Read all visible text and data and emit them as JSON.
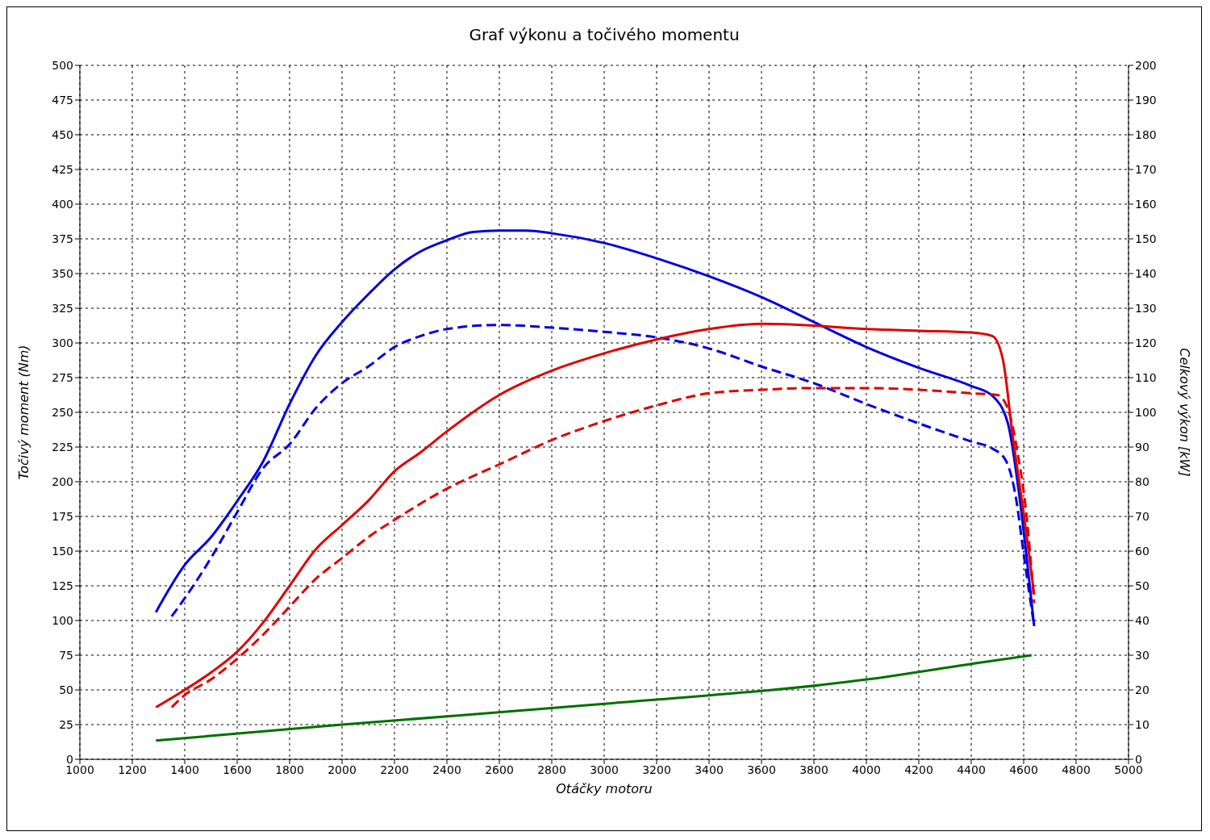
{
  "chart_data": {
    "type": "line",
    "title": "Graf výkonu a točivého momentu",
    "xlabel": "Otáčky motoru",
    "ylabel": "Točivý moment (Nm)",
    "y2label": "Celkový výkon [kW]",
    "xlim": [
      1000,
      5000
    ],
    "xticks": [
      1000,
      1200,
      1400,
      1600,
      1800,
      2000,
      2200,
      2400,
      2600,
      2800,
      3000,
      3200,
      3400,
      3600,
      3800,
      4000,
      4200,
      4400,
      4600,
      4800,
      5000
    ],
    "ylim": [
      0,
      500
    ],
    "yticks": [
      0,
      25,
      50,
      75,
      100,
      125,
      150,
      175,
      200,
      225,
      250,
      275,
      300,
      325,
      350,
      375,
      400,
      425,
      450,
      475,
      500
    ],
    "y2lim": [
      0,
      200
    ],
    "y2ticks": [
      0,
      10,
      20,
      30,
      40,
      50,
      60,
      70,
      80,
      90,
      100,
      110,
      120,
      130,
      140,
      150,
      160,
      170,
      180,
      190,
      200
    ],
    "grid": true,
    "marker": "none",
    "series": [
      {
        "color": "#0000e0",
        "line_style": "solid",
        "x": [
          1290,
          1400,
          1500,
          1600,
          1700,
          1800,
          1900,
          2000,
          2100,
          2200,
          2300,
          2400,
          2500,
          2600,
          2700,
          2800,
          3000,
          3200,
          3400,
          3600,
          3800,
          4000,
          4200,
          4400,
          4480,
          4540,
          4580,
          4610,
          4640
        ],
        "values": [
          106,
          140,
          160,
          186,
          215,
          256,
          291,
          315,
          335,
          353,
          366,
          374,
          380,
          381,
          381,
          379,
          372,
          361,
          348,
          333,
          315,
          297,
          282,
          269,
          262,
          242,
          195,
          148,
          96
        ]
      },
      {
        "color": "#0000e0",
        "line_style": "dashed",
        "x": [
          1350,
          1400,
          1500,
          1600,
          1700,
          1800,
          1900,
          2000,
          2100,
          2200,
          2300,
          2400,
          2600,
          2800,
          3000,
          3200,
          3400,
          3600,
          3800,
          4000,
          4200,
          4400,
          4480,
          4530,
          4570,
          4600,
          4640
        ],
        "values": [
          103,
          116,
          145,
          178,
          210,
          227,
          253,
          271,
          283,
          297,
          305,
          310,
          313,
          311,
          308,
          304,
          296,
          283,
          271,
          256,
          242,
          229,
          224,
          216,
          189,
          148,
          96
        ]
      },
      {
        "color": "#e00000",
        "line_style": "solid",
        "axis": "y2",
        "x": [
          1290,
          1400,
          1500,
          1600,
          1700,
          1800,
          1900,
          2000,
          2100,
          2200,
          2300,
          2400,
          2600,
          2800,
          3000,
          3200,
          3400,
          3600,
          3800,
          4000,
          4200,
          4400,
          4480,
          4520,
          4560,
          4600,
          4640
        ],
        "values": [
          15,
          20,
          25,
          31,
          39.5,
          50,
          60.5,
          67.5,
          74.5,
          83,
          88.5,
          94.5,
          105,
          112,
          117,
          121,
          124,
          125.5,
          125,
          124,
          123.5,
          123,
          122,
          115.5,
          92,
          71,
          47.5
        ]
      },
      {
        "color": "#e00000",
        "line_style": "dashed",
        "axis": "y2",
        "x": [
          1350,
          1400,
          1500,
          1600,
          1700,
          1800,
          1900,
          2000,
          2100,
          2200,
          2400,
          2600,
          2800,
          3000,
          3200,
          3400,
          3600,
          3800,
          4000,
          4200,
          4400,
          4500,
          4540,
          4580,
          4610,
          4640
        ],
        "values": [
          15,
          18.5,
          23,
          29,
          36,
          44,
          52,
          58,
          64,
          69,
          78,
          85,
          92,
          97.5,
          102,
          105.5,
          106.5,
          107,
          107,
          106.5,
          105.5,
          105,
          101,
          87,
          71,
          45
        ]
      },
      {
        "color": "#007000",
        "line_style": "solid",
        "axis": "y2",
        "x": [
          1290,
          2000,
          3000,
          4000,
          4400,
          4630
        ],
        "values": [
          5.4,
          10,
          16,
          23,
          27.5,
          30
        ]
      }
    ]
  }
}
